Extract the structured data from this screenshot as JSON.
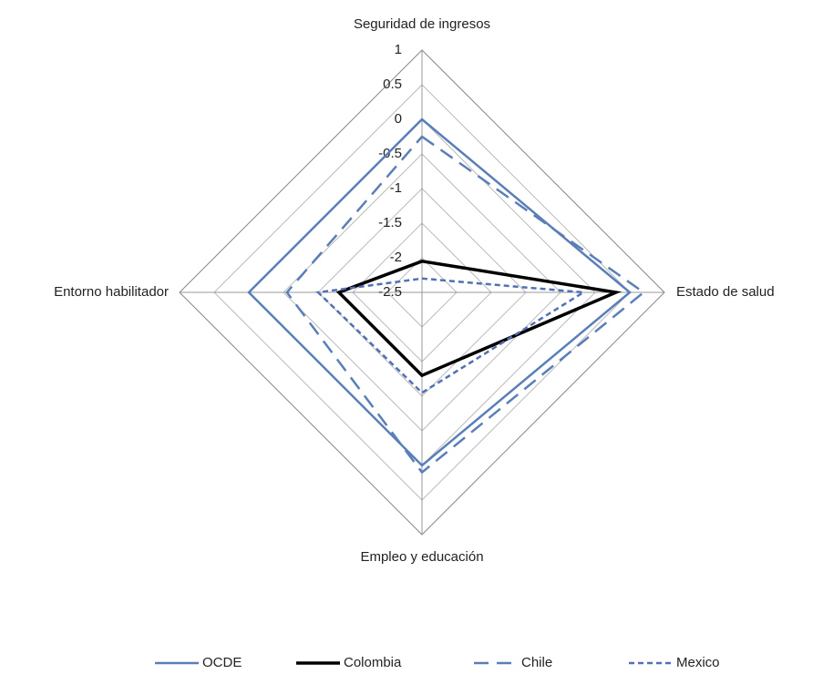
{
  "chart_data": {
    "type": "radar",
    "categories": [
      "Seguridad de ingresos",
      "Estado de salud",
      "Empleo y educación",
      "Entorno habilitador"
    ],
    "rlim": [
      -2.5,
      1
    ],
    "rticks": [
      1,
      0.5,
      0,
      -0.5,
      -1,
      -1.5,
      -2,
      -2.5
    ],
    "grid": true,
    "legend": "bottom",
    "series": [
      {
        "name": "OCDE",
        "color": "#5a7fb8",
        "dash": "solid",
        "values": [
          0,
          0.5,
          0,
          0
        ]
      },
      {
        "name": "Colombia",
        "color": "#000000",
        "dash": "solid",
        "values": [
          -2.05,
          0.3,
          -1.3,
          -1.3
        ]
      },
      {
        "name": "Chile",
        "color": "#5a7fb8",
        "dash": "long-dash",
        "values": [
          -0.25,
          0.7,
          0.1,
          -0.55
        ]
      },
      {
        "name": "Mexico",
        "color": "#5270b5",
        "dash": "short-dash",
        "values": [
          -2.3,
          -0.17,
          -1.05,
          -1.0
        ]
      }
    ]
  }
}
